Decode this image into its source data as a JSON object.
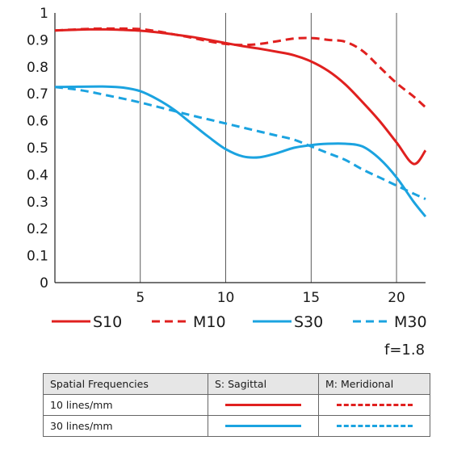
{
  "chart_data": {
    "type": "line",
    "xlim": [
      0,
      21.7
    ],
    "ylim": [
      0,
      1
    ],
    "x_ticks": [
      5,
      10,
      15,
      20
    ],
    "y_ticks": [
      0,
      0.1,
      0.2,
      0.3,
      0.4,
      0.5,
      0.6,
      0.7,
      0.8,
      0.9,
      1
    ],
    "y_tick_labels": [
      "0",
      "0.1",
      "0.2",
      "0.3",
      "0.4",
      "0.5",
      "0.6",
      "0.7",
      "0.8",
      "0.9",
      "1"
    ],
    "grid": "vertical",
    "series": [
      {
        "name": "S10",
        "color": "#e0201f",
        "dash": "solid",
        "x": [
          0,
          1,
          2,
          3,
          4,
          5,
          6,
          7,
          8,
          9,
          10,
          11,
          12,
          13,
          14,
          15,
          16,
          17,
          18,
          19,
          20,
          21,
          21.7
        ],
        "y": [
          0.935,
          0.937,
          0.939,
          0.939,
          0.937,
          0.934,
          0.928,
          0.92,
          0.911,
          0.9,
          0.888,
          0.877,
          0.867,
          0.856,
          0.843,
          0.82,
          0.785,
          0.735,
          0.67,
          0.6,
          0.52,
          0.44,
          0.49
        ]
      },
      {
        "name": "M10",
        "color": "#e0201f",
        "dash": "dashed",
        "x": [
          0,
          1,
          2,
          3,
          4,
          5,
          6,
          7,
          8,
          9,
          10,
          11,
          12,
          13,
          14,
          15,
          16,
          17,
          18,
          19,
          20,
          21,
          21.7
        ],
        "y": [
          0.935,
          0.938,
          0.941,
          0.942,
          0.942,
          0.94,
          0.932,
          0.92,
          0.908,
          0.895,
          0.885,
          0.881,
          0.885,
          0.895,
          0.905,
          0.907,
          0.9,
          0.893,
          0.86,
          0.8,
          0.74,
          0.69,
          0.65
        ]
      },
      {
        "name": "S30",
        "color": "#1ba3e0",
        "dash": "solid",
        "x": [
          0,
          1,
          2,
          3,
          4,
          5,
          6,
          7,
          8,
          9,
          10,
          11,
          12,
          13,
          14,
          15,
          16,
          17,
          18,
          19,
          20,
          21,
          21.7
        ],
        "y": [
          0.725,
          0.726,
          0.727,
          0.727,
          0.723,
          0.71,
          0.68,
          0.64,
          0.59,
          0.54,
          0.495,
          0.468,
          0.465,
          0.48,
          0.5,
          0.51,
          0.515,
          0.515,
          0.505,
          0.46,
          0.39,
          0.3,
          0.245
        ]
      },
      {
        "name": "M30",
        "color": "#1ba3e0",
        "dash": "dashed",
        "x": [
          0,
          1,
          2,
          3,
          4,
          5,
          6,
          7,
          8,
          9,
          10,
          11,
          12,
          13,
          14,
          15,
          16,
          17,
          18,
          19,
          20,
          21,
          21.7
        ],
        "y": [
          0.725,
          0.718,
          0.708,
          0.695,
          0.682,
          0.668,
          0.652,
          0.636,
          0.62,
          0.605,
          0.59,
          0.575,
          0.56,
          0.545,
          0.53,
          0.505,
          0.48,
          0.455,
          0.42,
          0.39,
          0.36,
          0.33,
          0.31
        ]
      }
    ]
  },
  "aperture_label": "f=1.8",
  "table": {
    "header": [
      "Spatial Frequencies",
      "S: Sagittal",
      "M: Meridional"
    ],
    "rows": [
      {
        "label": "10 lines/mm",
        "color": "#e0201f"
      },
      {
        "label": "30 lines/mm",
        "color": "#1ba3e0"
      }
    ]
  }
}
